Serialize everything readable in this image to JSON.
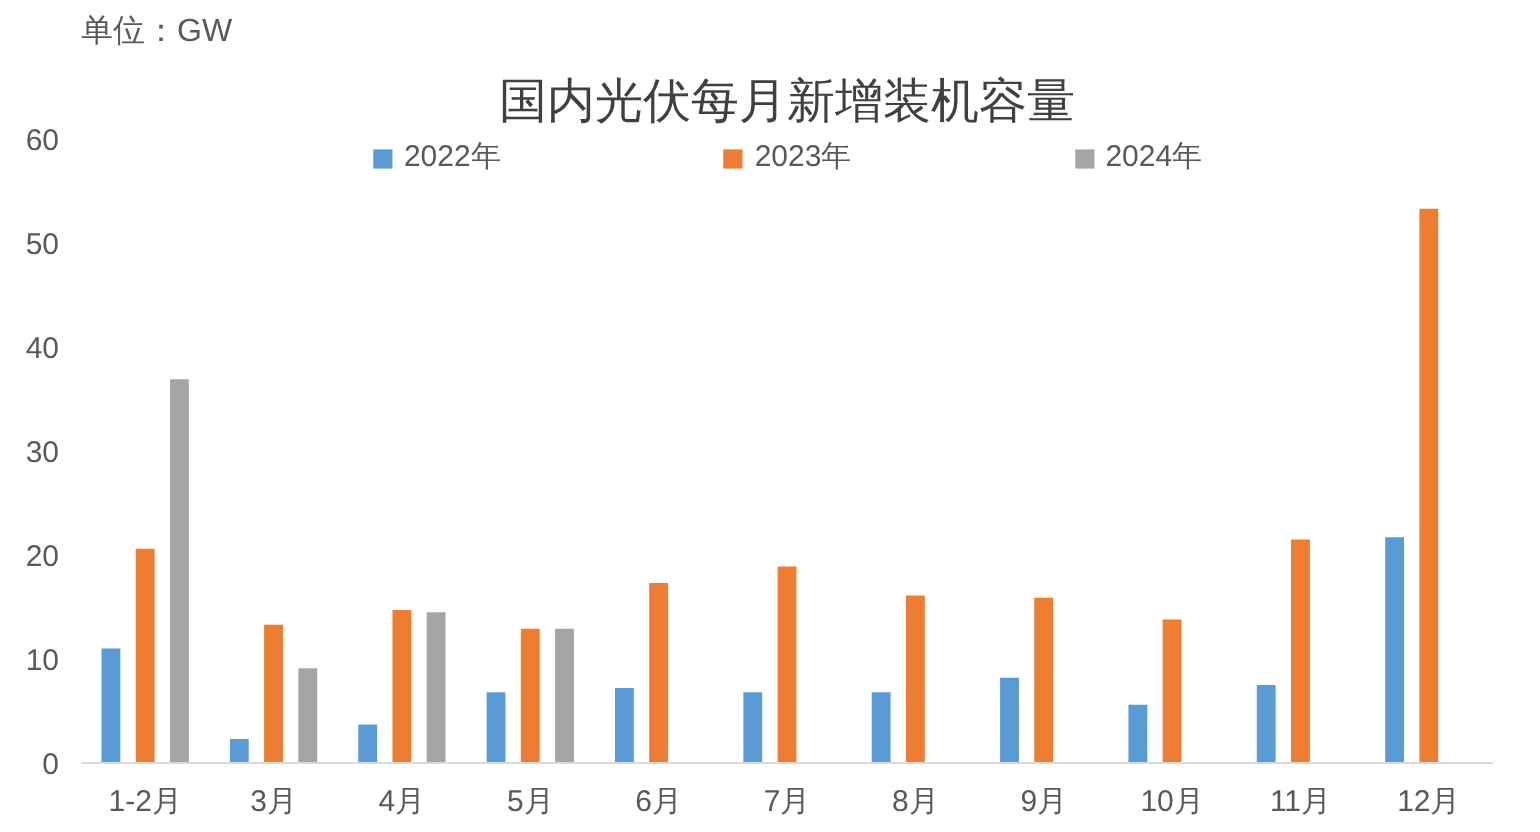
{
  "chart_data": {
    "type": "bar",
    "title": "国内光伏每月新增装机容量",
    "annotations": [
      "单位：GW"
    ],
    "categories": [
      "1-2月",
      "3月",
      "4月",
      "5月",
      "6月",
      "7月",
      "8月",
      "9月",
      "10月",
      "11月",
      "12月"
    ],
    "series": [
      {
        "name": "2022年",
        "color": "#5b9bd5",
        "values": [
          11.0,
          2.3,
          3.7,
          6.8,
          7.2,
          6.8,
          6.8,
          8.2,
          5.6,
          7.5,
          21.7
        ]
      },
      {
        "name": "2023年",
        "color": "#ed7d31",
        "values": [
          20.6,
          13.3,
          14.7,
          12.9,
          17.3,
          18.9,
          16.1,
          15.9,
          13.8,
          21.5,
          53.3
        ]
      },
      {
        "name": "2024年",
        "color": "#a5a5a5",
        "values": [
          36.9,
          9.1,
          14.5,
          12.9,
          null,
          null,
          null,
          null,
          null,
          null,
          null
        ]
      }
    ],
    "ylim": [
      0,
      60
    ],
    "yticks": [
      0,
      10,
      20,
      30,
      40,
      50,
      60
    ],
    "grid": false,
    "legend": "top"
  }
}
